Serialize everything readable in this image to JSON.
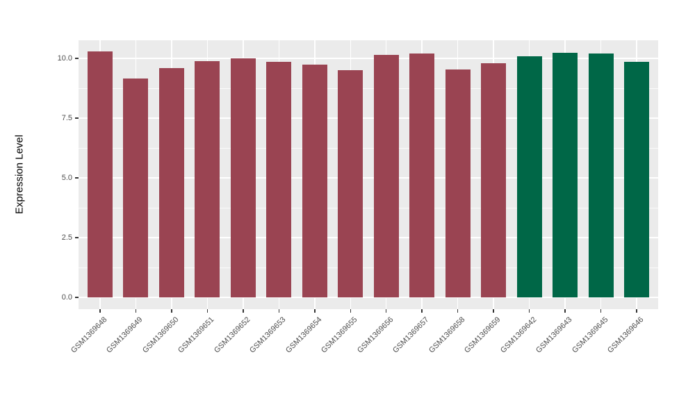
{
  "figure": {
    "background": "#FFFFFF",
    "panel_background": "#EBEBEB",
    "grid_color": "#FFFFFF",
    "axis_text_color": "#4D4D4D",
    "axis_title_color": "#000000",
    "tick_mark_color": "#333333"
  },
  "chart_data": {
    "type": "bar",
    "title": "",
    "xlabel": "",
    "ylabel": "Expression Level",
    "categories": [
      "GSM1369648",
      "GSM1369649",
      "GSM1369650",
      "GSM1369651",
      "GSM1369652",
      "GSM1369653",
      "GSM1369654",
      "GSM1369655",
      "GSM1369656",
      "GSM1369657",
      "GSM1369658",
      "GSM1369659",
      "GSM1369642",
      "GSM1369643",
      "GSM1369645",
      "GSM1369646"
    ],
    "values": [
      10.3,
      9.15,
      9.6,
      9.9,
      10.0,
      9.85,
      9.75,
      9.5,
      10.15,
      10.2,
      9.55,
      9.8,
      10.1,
      10.25,
      10.2,
      9.85
    ],
    "bar_colors": [
      "#9A4452",
      "#9A4452",
      "#9A4452",
      "#9A4452",
      "#9A4452",
      "#9A4452",
      "#9A4452",
      "#9A4452",
      "#9A4452",
      "#9A4452",
      "#9A4452",
      "#9A4452",
      "#006747",
      "#006747",
      "#006747",
      "#006747"
    ],
    "groups": [
      {
        "color": "#9A4452",
        "bar_count": 12
      },
      {
        "color": "#006747",
        "bar_count": 4
      }
    ],
    "y_ticks": {
      "labels": [
        "0.0",
        "2.5",
        "5.0",
        "7.5",
        "10.0"
      ],
      "values": [
        0,
        2.5,
        5,
        7.5,
        10
      ]
    },
    "y_minor_ticks": [
      1.25,
      3.75,
      6.25,
      8.75
    ],
    "ylim": [
      -0.49,
      10.76
    ],
    "bar_baseline": 0,
    "x_label_angle_deg": 45,
    "grid": true,
    "legend": false
  }
}
